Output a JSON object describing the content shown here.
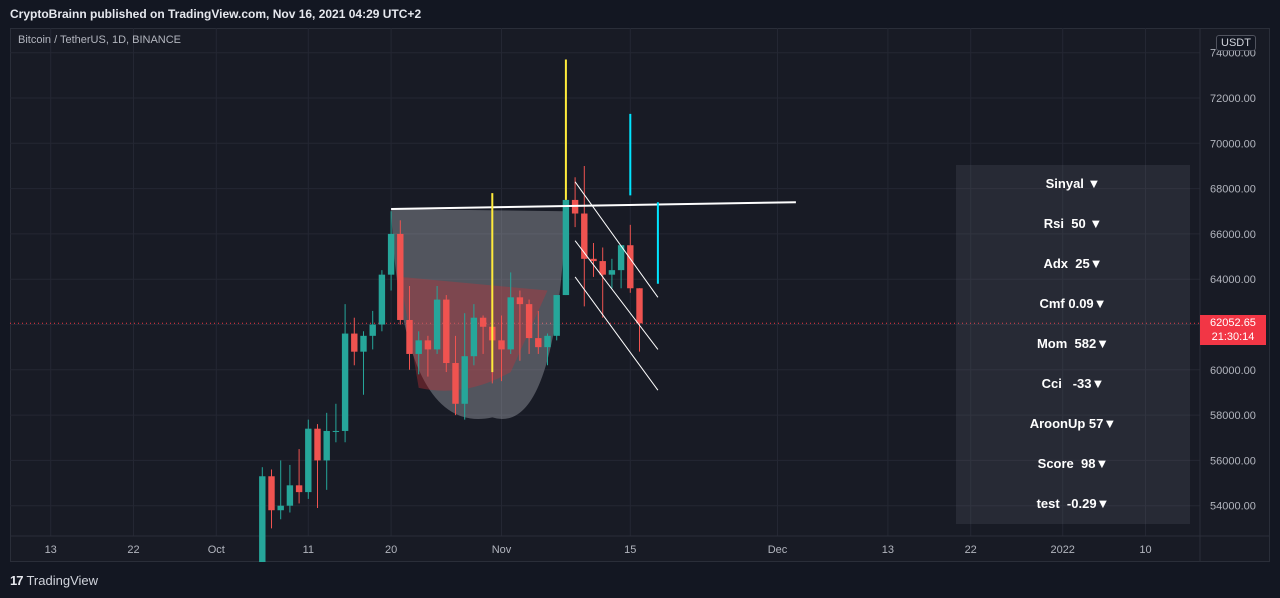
{
  "header": {
    "published_text": "CryptoBrainn published on TradingView.com, Nov 16, 2021 04:29 UTC+2"
  },
  "symbol": {
    "label": "Bitcoin / TetherUS, 1D, BINANCE"
  },
  "axis": {
    "currency": "USDT"
  },
  "last_price": {
    "price": "62052.65",
    "countdown": "21:30:14"
  },
  "footer": {
    "brand": "TradingView",
    "logo_glyph": "17"
  },
  "panel": {
    "rows": [
      "Sinyal ▼",
      "Rsi  50 ▼",
      "Adx  25▼",
      "Cmf 0.09▼",
      "Mom  582▼",
      "Cci   -33▼",
      "AroonUp 57▼",
      "Score  98▼",
      "test  -0.29▼"
    ]
  },
  "colors": {
    "up": "#26a69a",
    "down": "#ef5350",
    "background": "#181b25",
    "grid": "#242733",
    "price_line": "#f23645"
  },
  "chart_data": {
    "type": "candlestick",
    "y_ticks": [
      "54000.00",
      "56000.00",
      "58000.00",
      "60000.00",
      "62000.00",
      "64000.00",
      "66000.00",
      "68000.00",
      "70000.00",
      "72000.00",
      "74000.00"
    ],
    "x_ticks": [
      {
        "date": "2021-09-13",
        "label": "13"
      },
      {
        "date": "2021-09-22",
        "label": "22"
      },
      {
        "date": "2021-10-01",
        "label": "Oct"
      },
      {
        "date": "2021-10-11",
        "label": "11"
      },
      {
        "date": "2021-10-20",
        "label": "20"
      },
      {
        "date": "2021-11-01",
        "label": "Nov"
      },
      {
        "date": "2021-11-15",
        "label": "15"
      },
      {
        "date": "2021-12-01",
        "label": "Dec"
      },
      {
        "date": "2021-12-13",
        "label": "13"
      },
      {
        "date": "2021-12-22",
        "label": "22"
      },
      {
        "date": "2022-01-01",
        "label": "2022"
      },
      {
        "date": "2022-01-10",
        "label": "10"
      }
    ],
    "candles": [
      {
        "date": "2021-10-06",
        "o": 51500,
        "h": 55700,
        "l": 51000,
        "c": 55300
      },
      {
        "date": "2021-10-07",
        "o": 55300,
        "h": 55600,
        "l": 53000,
        "c": 53800
      },
      {
        "date": "2021-10-08",
        "o": 53800,
        "h": 56000,
        "l": 53400,
        "c": 54000
      },
      {
        "date": "2021-10-09",
        "o": 54000,
        "h": 55800,
        "l": 53700,
        "c": 54900
      },
      {
        "date": "2021-10-10",
        "o": 54900,
        "h": 56500,
        "l": 54100,
        "c": 54600
      },
      {
        "date": "2021-10-11",
        "o": 54600,
        "h": 57800,
        "l": 54300,
        "c": 57400
      },
      {
        "date": "2021-10-12",
        "o": 57400,
        "h": 57600,
        "l": 53900,
        "c": 56000
      },
      {
        "date": "2021-10-13",
        "o": 56000,
        "h": 58100,
        "l": 54700,
        "c": 57300
      },
      {
        "date": "2021-10-14",
        "o": 57300,
        "h": 58500,
        "l": 56800,
        "c": 57300
      },
      {
        "date": "2021-10-15",
        "o": 57300,
        "h": 62900,
        "l": 56800,
        "c": 61600
      },
      {
        "date": "2021-10-16",
        "o": 61600,
        "h": 62300,
        "l": 60200,
        "c": 60800
      },
      {
        "date": "2021-10-17",
        "o": 60800,
        "h": 61700,
        "l": 58900,
        "c": 61500
      },
      {
        "date": "2021-10-18",
        "o": 61500,
        "h": 62600,
        "l": 60900,
        "c": 62000
      },
      {
        "date": "2021-10-19",
        "o": 62000,
        "h": 64400,
        "l": 61700,
        "c": 64200
      },
      {
        "date": "2021-10-20",
        "o": 64200,
        "h": 67000,
        "l": 63500,
        "c": 66000
      },
      {
        "date": "2021-10-21",
        "o": 66000,
        "h": 66600,
        "l": 62000,
        "c": 62200
      },
      {
        "date": "2021-10-22",
        "o": 62200,
        "h": 63700,
        "l": 60000,
        "c": 60700
      },
      {
        "date": "2021-10-23",
        "o": 60700,
        "h": 61700,
        "l": 59800,
        "c": 61300
      },
      {
        "date": "2021-10-24",
        "o": 61300,
        "h": 61500,
        "l": 59700,
        "c": 60900
      },
      {
        "date": "2021-10-25",
        "o": 60900,
        "h": 63700,
        "l": 60700,
        "c": 63100
      },
      {
        "date": "2021-10-26",
        "o": 63100,
        "h": 63300,
        "l": 59900,
        "c": 60300
      },
      {
        "date": "2021-10-27",
        "o": 60300,
        "h": 61500,
        "l": 58000,
        "c": 58500
      },
      {
        "date": "2021-10-28",
        "o": 58500,
        "h": 62500,
        "l": 57800,
        "c": 60600
      },
      {
        "date": "2021-10-29",
        "o": 60600,
        "h": 62900,
        "l": 60200,
        "c": 62300
      },
      {
        "date": "2021-10-30",
        "o": 62300,
        "h": 62400,
        "l": 60700,
        "c": 61900
      },
      {
        "date": "2021-10-31",
        "o": 61900,
        "h": 62400,
        "l": 59400,
        "c": 61300
      },
      {
        "date": "2021-11-01",
        "o": 61300,
        "h": 62400,
        "l": 59500,
        "c": 60900
      },
      {
        "date": "2021-11-02",
        "o": 60900,
        "h": 64300,
        "l": 60700,
        "c": 63200
      },
      {
        "date": "2021-11-03",
        "o": 63200,
        "h": 63500,
        "l": 60400,
        "c": 62900
      },
      {
        "date": "2021-11-04",
        "o": 62900,
        "h": 63100,
        "l": 60700,
        "c": 61400
      },
      {
        "date": "2021-11-05",
        "o": 61400,
        "h": 62600,
        "l": 60700,
        "c": 61000
      },
      {
        "date": "2021-11-06",
        "o": 61000,
        "h": 61600,
        "l": 60200,
        "c": 61500
      },
      {
        "date": "2021-11-07",
        "o": 61500,
        "h": 63300,
        "l": 61300,
        "c": 63300
      },
      {
        "date": "2021-11-08",
        "o": 63300,
        "h": 67800,
        "l": 63300,
        "c": 67500
      },
      {
        "date": "2021-11-09",
        "o": 67500,
        "h": 68500,
        "l": 66300,
        "c": 66900
      },
      {
        "date": "2021-11-10",
        "o": 66900,
        "h": 69000,
        "l": 62800,
        "c": 64900
      },
      {
        "date": "2021-11-11",
        "o": 64900,
        "h": 65600,
        "l": 64100,
        "c": 64800
      },
      {
        "date": "2021-11-12",
        "o": 64800,
        "h": 65400,
        "l": 62300,
        "c": 64200
      },
      {
        "date": "2021-11-13",
        "o": 64200,
        "h": 64900,
        "l": 63600,
        "c": 64400
      },
      {
        "date": "2021-11-14",
        "o": 64400,
        "h": 65500,
        "l": 63600,
        "c": 65500
      },
      {
        "date": "2021-11-15",
        "o": 65500,
        "h": 66400,
        "l": 63400,
        "c": 63600
      },
      {
        "date": "2021-11-16",
        "o": 63600,
        "h": 63600,
        "l": 60800,
        "c": 62050
      }
    ],
    "last_price": 62052.65,
    "annotations": {
      "resistance_line": {
        "from": {
          "date": "2021-10-20",
          "price": 67100
        },
        "to": {
          "date": "2021-12-03",
          "price": 67400
        }
      },
      "channel_lines": [
        {
          "from": {
            "date": "2021-11-09",
            "price": 68300
          },
          "to": {
            "date": "2021-11-18",
            "price": 63200
          }
        },
        {
          "from": {
            "date": "2021-11-09",
            "price": 65700
          },
          "to": {
            "date": "2021-11-18",
            "price": 60900
          }
        },
        {
          "from": {
            "date": "2021-11-09",
            "price": 64100
          },
          "to": {
            "date": "2021-11-18",
            "price": 59100
          }
        }
      ],
      "yellow_lines": [
        {
          "date": "2021-10-31",
          "from": 59900,
          "to": 67800
        },
        {
          "date": "2021-11-08",
          "from": 67500,
          "to": 73700
        }
      ],
      "cyan_lines": [
        {
          "date": "2021-11-15",
          "from": 67700,
          "to": 71300
        },
        {
          "date": "2021-11-18",
          "from": 63800,
          "to": 67400
        }
      ],
      "cup_shape": {
        "left": {
          "date": "2021-10-20",
          "price": 67100
        },
        "bottom": {
          "date": "2021-10-31",
          "price": 57900
        },
        "right": {
          "date": "2021-11-08",
          "price": 67000
        }
      },
      "red_triangle": [
        {
          "date": "2021-10-21",
          "price": 64100
        },
        {
          "date": "2021-11-06",
          "price": 63500
        },
        {
          "date": "2021-10-23",
          "price": 59200
        },
        {
          "date": "2021-11-02",
          "price": 59900
        }
      ]
    }
  }
}
